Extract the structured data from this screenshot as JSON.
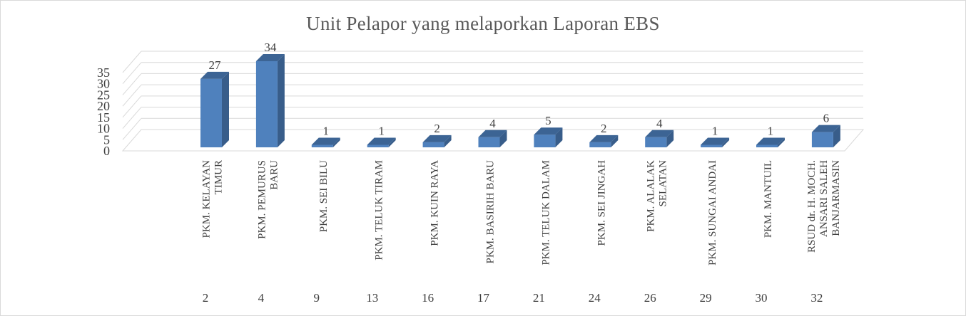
{
  "chart_data": {
    "type": "bar",
    "title": "Unit Pelapor yang melaporkan Laporan EBS",
    "xlabel": "",
    "ylabel": "",
    "ylim": [
      0,
      35
    ],
    "y_ticks": [
      0,
      5,
      10,
      15,
      20,
      25,
      30,
      35
    ],
    "grid": true,
    "legend": "none",
    "three_d": true,
    "bar_color": "#4f81bd",
    "bar_side_color": "#385d8a",
    "bar_top_color": "#3c6494",
    "grid_color": "#d9d9d9",
    "categories": [
      "PKM. KELAYAN TIMUR",
      "PKM. PEMURUS BARU",
      "PKM. SEI BILU",
      "PKM. TELUK TIRAM",
      "PKM. KUIN RAYA",
      "PKM. BASIRIH BARU",
      "PKM. TELUK DALAM",
      "PKM. SEI JINGAH",
      "PKM. ALALAK SELATAN",
      "PKM. SUNGAI ANDAI",
      "PKM. MANTUIL",
      "RSUD dr. H. MOCH. ANSARI SALEH BANJARMASIN"
    ],
    "category_label_lines": [
      [
        "PKM. KELAYAN",
        "TIMUR"
      ],
      [
        "PKM. PEMURUS",
        "BARU"
      ],
      [
        "PKM. SEI BILU"
      ],
      [
        "PKM. TELUK TIRAM"
      ],
      [
        "PKM. KUIN RAYA"
      ],
      [
        "PKM. BASIRIH BARU"
      ],
      [
        "PKM. TELUK DALAM"
      ],
      [
        "PKM. SEI JINGAH"
      ],
      [
        "PKM. ALALAK",
        "SELATAN"
      ],
      [
        "PKM. SUNGAI ANDAI"
      ],
      [
        "PKM. MANTUIL"
      ],
      [
        "RSUD dr. H. MOCH.",
        "ANSARI SALEH",
        "BANJARMASIN"
      ]
    ],
    "secondary_categories": [
      "2",
      "4",
      "9",
      "13",
      "16",
      "17",
      "21",
      "24",
      "26",
      "29",
      "30",
      "32"
    ],
    "values": [
      27,
      34,
      1,
      1,
      2,
      4,
      5,
      2,
      4,
      1,
      1,
      6
    ]
  }
}
